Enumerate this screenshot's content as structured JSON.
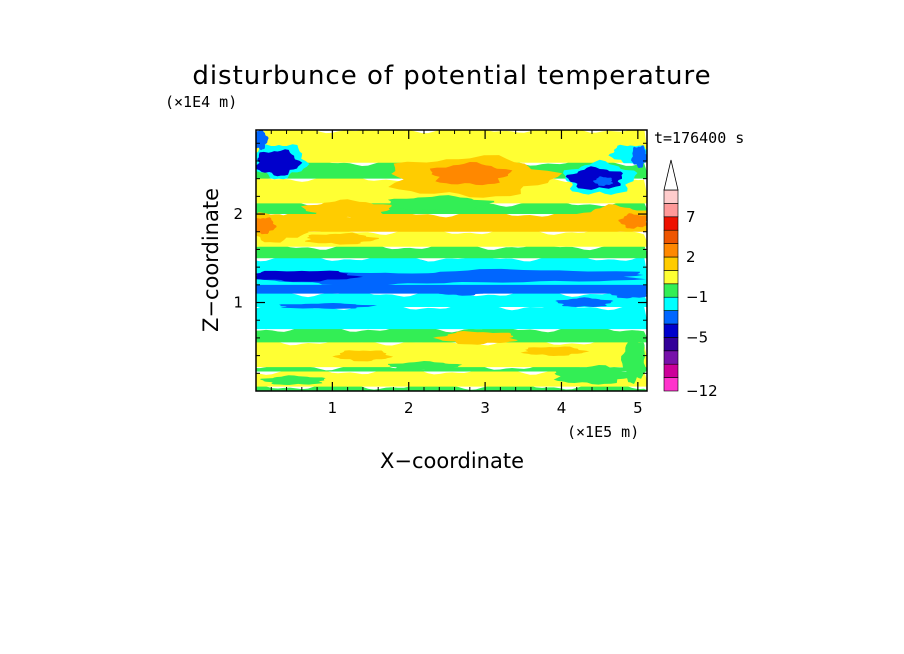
{
  "chart_data": {
    "type": "heatmap",
    "title": "disturbunce of potential temperature",
    "time_label": "t=176400 s",
    "xlabel": "X−coordinate",
    "ylabel": "Z−coordinate",
    "x_unit": "(×1E5 m)",
    "y_unit": "(×1E4 m)",
    "xlim": [
      0,
      5.12
    ],
    "ylim": [
      0,
      2.95
    ],
    "x_ticks": [
      "1",
      "2",
      "3",
      "4",
      "5"
    ],
    "y_ticks": [
      "1",
      "2"
    ],
    "colorbar": {
      "labels": [
        "7",
        "2",
        "−1",
        "−5",
        "−12"
      ],
      "label_values": [
        7,
        2,
        -1,
        -5,
        -12
      ],
      "levels": [
        -12,
        -10,
        -8,
        -7,
        -5,
        -4,
        -3,
        -1,
        0,
        1,
        2,
        3,
        5,
        7,
        9,
        11
      ],
      "colors": [
        "#ff33cc",
        "#cc0099",
        "#7711aa",
        "#330099",
        "#0000cc",
        "#0066ff",
        "#00ffff",
        "#33ee55",
        "#ffff33",
        "#ffcc00",
        "#ff8800",
        "#ee5500",
        "#ee1100",
        "#ff9999",
        "#ffcccc"
      ],
      "extend": "max"
    },
    "bands": [
      {
        "z": [
          0.0,
          0.05
        ],
        "color": "#33ee55"
      },
      {
        "z": [
          0.05,
          0.22
        ],
        "color": "#ffff33"
      },
      {
        "z": [
          0.22,
          0.27
        ],
        "color": "#33ee55"
      },
      {
        "z": [
          0.27,
          0.55
        ],
        "color": "#ffff33"
      },
      {
        "z": [
          0.55,
          0.7
        ],
        "color": "#33ee55"
      },
      {
        "z": [
          0.7,
          0.95
        ],
        "color": "#00ffff"
      },
      {
        "z": [
          0.95,
          1.1
        ],
        "color": "#00ffff"
      },
      {
        "z": [
          1.1,
          1.45
        ],
        "color": "#0066ff"
      },
      {
        "z": [
          1.2,
          1.5
        ],
        "color": "#00ffff"
      },
      {
        "z": [
          1.5,
          1.63
        ],
        "color": "#33ee55"
      },
      {
        "z": [
          1.63,
          1.8
        ],
        "color": "#ffff33"
      },
      {
        "z": [
          1.8,
          2.0
        ],
        "color": "#ffcc00"
      },
      {
        "z": [
          2.0,
          2.12
        ],
        "color": "#33ee55"
      },
      {
        "z": [
          2.12,
          2.4
        ],
        "color": "#ffff33"
      },
      {
        "z": [
          2.4,
          2.58
        ],
        "color": "#33ee55"
      },
      {
        "z": [
          2.58,
          2.95
        ],
        "color": "#ffff33"
      }
    ],
    "blobs": [
      {
        "x": 0.3,
        "z": 2.6,
        "rx": 0.35,
        "rz": 0.19,
        "color": "#00ffff"
      },
      {
        "x": 0.28,
        "z": 2.58,
        "rx": 0.28,
        "rz": 0.14,
        "color": "#0000cc"
      },
      {
        "x": 0.05,
        "z": 2.84,
        "rx": 0.1,
        "rz": 0.11,
        "color": "#0066ff"
      },
      {
        "x": 4.5,
        "z": 2.4,
        "rx": 0.45,
        "rz": 0.18,
        "color": "#00ffff"
      },
      {
        "x": 4.45,
        "z": 2.4,
        "rx": 0.35,
        "rz": 0.12,
        "color": "#0000cc"
      },
      {
        "x": 4.55,
        "z": 2.37,
        "rx": 0.12,
        "rz": 0.05,
        "color": "#0066ff"
      },
      {
        "x": 4.9,
        "z": 2.68,
        "rx": 0.25,
        "rz": 0.1,
        "color": "#00ffff"
      },
      {
        "x": 5.02,
        "z": 2.65,
        "rx": 0.1,
        "rz": 0.12,
        "color": "#0066ff"
      },
      {
        "x": 2.8,
        "z": 2.42,
        "rx": 1.05,
        "rz": 0.22,
        "color": "#ffcc00"
      },
      {
        "x": 2.8,
        "z": 2.45,
        "rx": 0.5,
        "rz": 0.12,
        "color": "#ff8800"
      },
      {
        "x": 4.7,
        "z": 1.95,
        "rx": 0.45,
        "rz": 0.14,
        "color": "#ffcc00"
      },
      {
        "x": 4.95,
        "z": 1.92,
        "rx": 0.18,
        "rz": 0.08,
        "color": "#ff8800"
      },
      {
        "x": 0.25,
        "z": 1.85,
        "rx": 0.4,
        "rz": 0.16,
        "color": "#ffcc00"
      },
      {
        "x": 0.1,
        "z": 1.87,
        "rx": 0.15,
        "rz": 0.09,
        "color": "#ff8800"
      },
      {
        "x": 1.1,
        "z": 1.72,
        "rx": 0.45,
        "rz": 0.06,
        "color": "#ffcc00"
      },
      {
        "x": 2.4,
        "z": 2.12,
        "rx": 0.65,
        "rz": 0.08,
        "color": "#33ee55"
      },
      {
        "x": 1.2,
        "z": 2.05,
        "rx": 0.55,
        "rz": 0.1,
        "color": "#ffcc00"
      },
      {
        "x": 3.5,
        "z": 1.3,
        "rx": 1.6,
        "rz": 0.07,
        "color": "#0066ff"
      },
      {
        "x": 1.5,
        "z": 1.27,
        "rx": 1.3,
        "rz": 0.07,
        "color": "#0066ff"
      },
      {
        "x": 0.6,
        "z": 1.3,
        "rx": 0.7,
        "rz": 0.06,
        "color": "#0000cc"
      },
      {
        "x": 2.7,
        "z": 1.12,
        "rx": 0.3,
        "rz": 0.04,
        "color": "#0066ff"
      },
      {
        "x": 0.9,
        "z": 0.96,
        "rx": 0.6,
        "rz": 0.03,
        "color": "#0066ff"
      },
      {
        "x": 4.3,
        "z": 1.0,
        "rx": 0.35,
        "rz": 0.05,
        "color": "#0066ff"
      },
      {
        "x": 4.9,
        "z": 1.1,
        "rx": 0.25,
        "rz": 0.05,
        "color": "#0066ff"
      },
      {
        "x": 2.9,
        "z": 0.6,
        "rx": 0.5,
        "rz": 0.07,
        "color": "#ffcc00"
      },
      {
        "x": 1.4,
        "z": 0.4,
        "rx": 0.35,
        "rz": 0.06,
        "color": "#ffcc00"
      },
      {
        "x": 3.9,
        "z": 0.45,
        "rx": 0.4,
        "rz": 0.05,
        "color": "#ffcc00"
      },
      {
        "x": 4.4,
        "z": 0.18,
        "rx": 0.5,
        "rz": 0.1,
        "color": "#33ee55"
      },
      {
        "x": 2.2,
        "z": 0.28,
        "rx": 0.45,
        "rz": 0.05,
        "color": "#33ee55"
      },
      {
        "x": 0.5,
        "z": 0.12,
        "rx": 0.4,
        "rz": 0.05,
        "color": "#33ee55"
      },
      {
        "x": 4.95,
        "z": 0.35,
        "rx": 0.15,
        "rz": 0.25,
        "color": "#33ee55"
      }
    ]
  }
}
